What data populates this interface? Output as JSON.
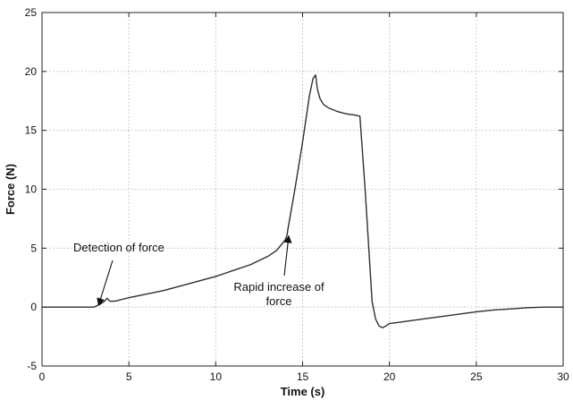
{
  "chart_data": {
    "type": "line",
    "title": "",
    "xlabel": "Time (s)",
    "ylabel": "Force (N)",
    "xlim": [
      0,
      30
    ],
    "ylim": [
      -5,
      25
    ],
    "xticks": [
      0,
      5,
      10,
      15,
      20,
      25,
      30
    ],
    "yticks": [
      -5,
      0,
      5,
      10,
      15,
      20,
      25
    ],
    "grid": true,
    "series": [
      {
        "color": "#2f2f2f",
        "x": [
          0,
          1,
          2,
          3.0,
          3.3,
          3.6,
          3.75,
          3.9,
          4.2,
          5,
          6,
          7,
          8,
          9,
          10,
          11,
          12,
          13,
          13.5,
          14.0,
          14.1,
          14.2,
          14.5,
          15.0,
          15.4,
          15.6,
          15.75,
          15.85,
          16.0,
          16.2,
          16.5,
          17,
          17.5,
          18.0,
          18.3,
          18.6,
          19.0,
          19.2,
          19.4,
          19.6,
          19.8,
          20.0,
          20.5,
          21,
          22,
          23,
          24,
          25,
          26,
          27,
          28,
          29,
          30
        ],
        "y": [
          0,
          0,
          0,
          0.0,
          0.2,
          0.5,
          0.75,
          0.5,
          0.5,
          0.8,
          1.1,
          1.4,
          1.8,
          2.2,
          2.6,
          3.1,
          3.6,
          4.3,
          4.8,
          5.7,
          6.1,
          7.0,
          9.5,
          14.0,
          18.0,
          19.4,
          19.7,
          18.5,
          17.7,
          17.2,
          16.9,
          16.6,
          16.4,
          16.3,
          16.2,
          10.0,
          0.5,
          -1.0,
          -1.6,
          -1.75,
          -1.6,
          -1.4,
          -1.3,
          -1.2,
          -1.0,
          -0.8,
          -0.6,
          -0.4,
          -0.25,
          -0.15,
          -0.05,
          0.0,
          0.0
        ]
      }
    ],
    "annotations": [
      {
        "text": "Detection of force",
        "x": 3.2,
        "y": 0.0
      },
      {
        "text": "Rapid increase of force",
        "x": 14.1,
        "y": 6.2
      }
    ]
  }
}
